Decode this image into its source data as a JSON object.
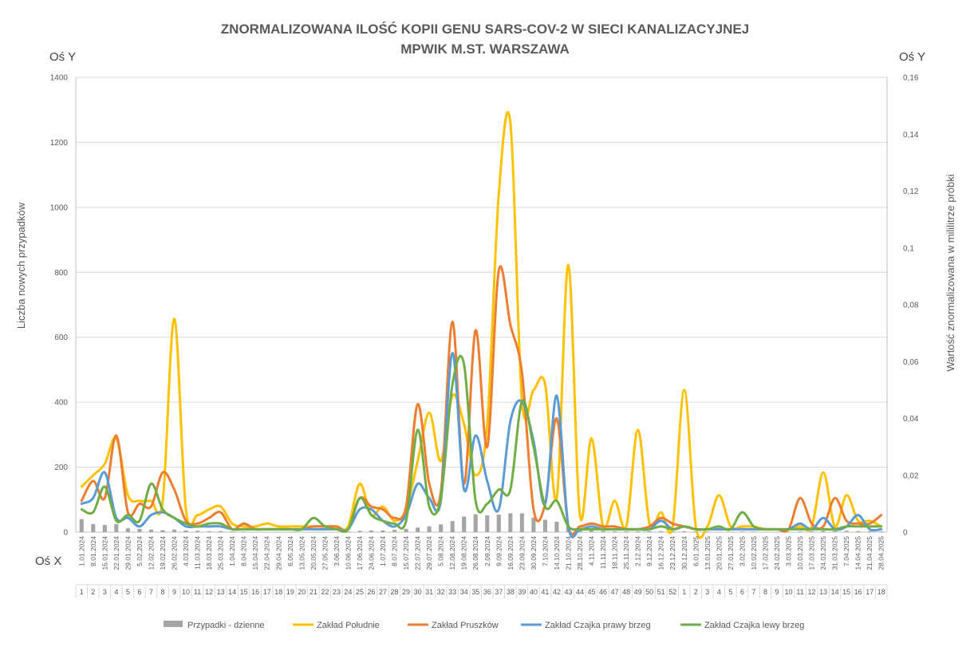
{
  "chart_data": {
    "type": "line",
    "title_line1": "ZNORMALIZOWANA ILOŚĆ KOPII GENU SARS-COV-2 W SIECI KANALIZACYJNEJ",
    "title_line2": "MPWIK M.ST. WARSZAWA",
    "left_axis_name": "Oś Y",
    "right_axis_name": "Oś Y",
    "x_axis_name": "Oś X",
    "ylabel_left": "Liczba nowych przypadków",
    "ylabel_right": "Wartość znormalizowana  w mililitrze próbki",
    "y_left_ticks": [
      "0",
      "200",
      "400",
      "600",
      "800",
      "1000",
      "1200",
      "1400"
    ],
    "y_right_ticks": [
      "0",
      "0,02",
      "0,04",
      "0,06",
      "0,08",
      "0,1",
      "0,12",
      "0,14",
      "0,16"
    ],
    "ylim_left": [
      0,
      1400
    ],
    "ylim_right": [
      0,
      0.16
    ],
    "grid": "horizontal",
    "legend_position": "bottom",
    "x_dates": [
      "1.01.2024",
      "8.01.2024",
      "15.01.2024",
      "22.01.2024",
      "29.01.2024",
      "5.02.2024",
      "12.02.2024",
      "19.02.2024",
      "26.02.2024",
      "4.03.2024",
      "11.03.2024",
      "18.03.2024",
      "25.03.2024",
      "1.04.2024",
      "8.04.2024",
      "15.04.2024",
      "22.04.2024",
      "29.04.2024",
      "6.05.2024",
      "13.05.2024",
      "20.05.2024",
      "27.05.2024",
      "3.06.2024",
      "10.06.2024",
      "17.06.2024",
      "24.06.2024",
      "1.07.2024",
      "8.07.2024",
      "15.07.2024",
      "22.07.2024",
      "29.07.2024",
      "5.08.2024",
      "12.08.2024",
      "19.08.2024",
      "26.08.2024",
      "2.09.2024",
      "9.09.2024",
      "16.09.2024",
      "23.09.2024",
      "30.09.2024",
      "7.10.2024",
      "14.10.2024",
      "21.10.2024",
      "28.10.2024",
      "4.11.2024",
      "11.11.2024",
      "18.11.2024",
      "25.11.2024",
      "2.12.2024",
      "9.12.2024",
      "16.12.2024",
      "23.12.2024",
      "30.12.2024",
      "6.01.2025",
      "13.01.2025",
      "20.01.2025",
      "27.01.2025",
      "3.02.2025",
      "10.02.2025",
      "17.02.2025",
      "24.02.2025",
      "3.03.2025",
      "10.03.2025",
      "17.03.2025",
      "24.03.2025",
      "31.03.2025",
      "7.04.2025",
      "14.04.2025",
      "21.04.2025",
      "28.04.2025"
    ],
    "x_weeks": [
      "1",
      "2",
      "3",
      "4",
      "5",
      "6",
      "7",
      "8",
      "9",
      "10",
      "11",
      "12",
      "13",
      "14",
      "15",
      "16",
      "17",
      "18",
      "19",
      "20",
      "21",
      "22",
      "23",
      "24",
      "25",
      "26",
      "27",
      "28",
      "29",
      "30",
      "31",
      "32",
      "33",
      "34",
      "35",
      "36",
      "37",
      "38",
      "39",
      "40",
      "41",
      "42",
      "43",
      "44",
      "45",
      "46",
      "47",
      "48",
      "49",
      "50",
      "51",
      "52",
      "1",
      "2",
      "3",
      "4",
      "5",
      "6",
      "7",
      "8",
      "9",
      "10",
      "11",
      "12",
      "13",
      "14",
      "15",
      "16",
      "17",
      "18"
    ],
    "series": [
      {
        "name": "Przypadki - dzienne",
        "type": "bar",
        "axis": "left",
        "color": "#a5a5a5",
        "values": [
          40,
          25,
          22,
          25,
          12,
          10,
          8,
          6,
          8,
          5,
          4,
          3,
          3,
          2,
          2,
          1,
          1,
          1,
          1,
          1,
          1,
          1,
          1,
          2,
          4,
          5,
          5,
          7,
          10,
          14,
          18,
          24,
          34,
          48,
          55,
          52,
          54,
          58,
          58,
          45,
          38,
          32,
          18,
          10,
          6,
          4,
          3,
          3,
          3,
          3,
          3,
          3,
          3,
          2,
          2,
          1,
          1,
          2,
          2,
          1,
          1,
          1,
          2,
          3,
          4,
          4,
          4,
          3,
          3,
          2
        ]
      },
      {
        "name": "Zakład Południe",
        "type": "line",
        "axis": "right",
        "color": "#ffc000",
        "values": [
          0.016,
          0.02,
          0.024,
          0.033,
          0.013,
          0.011,
          0.011,
          0.011,
          0.075,
          0.008,
          0.006,
          0.008,
          0.009,
          0.003,
          0.002,
          0.002,
          0.003,
          0.002,
          0.002,
          0.002,
          0.002,
          0.002,
          0.002,
          0.002,
          0.017,
          0.006,
          0.009,
          0.004,
          0.008,
          0.025,
          0.042,
          0.025,
          0.048,
          0.038,
          0.02,
          0.038,
          0.119,
          0.144,
          0.046,
          0.05,
          0.052,
          0.012,
          0.094,
          0.006,
          0.033,
          0.002,
          0.011,
          0.002,
          0.036,
          0.003,
          0.007,
          0.002,
          0.05,
          0.002,
          0.002,
          0.013,
          0.002,
          0.002,
          0.002,
          0.001,
          0.001,
          0.001,
          0.002,
          0.002,
          0.021,
          0.002,
          0.013,
          0.004,
          0.004,
          0.002
        ]
      },
      {
        "name": "Zakład Pruszków",
        "type": "line",
        "axis": "right",
        "color": "#ed7d31",
        "values": [
          0.011,
          0.018,
          0.012,
          0.034,
          0.007,
          0.01,
          0.009,
          0.021,
          0.015,
          0.004,
          0.003,
          0.005,
          0.007,
          0.001,
          0.003,
          0.001,
          0.001,
          0.001,
          0.001,
          0.001,
          0.002,
          0.002,
          0.002,
          0.001,
          0.012,
          0.009,
          0.008,
          0.005,
          0.009,
          0.045,
          0.017,
          0.014,
          0.074,
          0.017,
          0.071,
          0.03,
          0.092,
          0.073,
          0.056,
          0.008,
          0.01,
          0.04,
          0.002,
          0.002,
          0.003,
          0.002,
          0.002,
          0.001,
          0.001,
          0.002,
          0.005,
          0.003,
          0.002,
          0.001,
          0.001,
          0.001,
          0.001,
          0.001,
          0.001,
          0.001,
          0.001,
          0.001,
          0.012,
          0.003,
          0.002,
          0.012,
          0.004,
          0.003,
          0.003,
          0.006
        ]
      },
      {
        "name": "Zakład Czajka prawy brzeg",
        "type": "line",
        "axis": "right",
        "color": "#5b9bd5",
        "values": [
          0.01,
          0.012,
          0.021,
          0.005,
          0.005,
          0.002,
          0.006,
          0.007,
          0.005,
          0.002,
          0.002,
          0.002,
          0.002,
          0.001,
          0.001,
          0.001,
          0.001,
          0.001,
          0.001,
          0.001,
          0.001,
          0.001,
          0.001,
          0.001,
          0.008,
          0.008,
          0.004,
          0.002,
          0.006,
          0.017,
          0.012,
          0.011,
          0.063,
          0.015,
          0.034,
          0.018,
          0.008,
          0.039,
          0.046,
          0.032,
          0.01,
          0.048,
          0.002,
          0.001,
          0.002,
          0.001,
          0.001,
          0.001,
          0.001,
          0.001,
          0.004,
          0.001,
          0.002,
          0.001,
          0.001,
          0.001,
          0.001,
          0.001,
          0.001,
          0.001,
          0.001,
          0.001,
          0.003,
          0.001,
          0.005,
          0.001,
          0.002,
          0.006,
          0.001,
          0.001
        ]
      },
      {
        "name": "Zakład Czajka lewy brzeg",
        "type": "line",
        "axis": "right",
        "color": "#70ad47",
        "values": [
          0.008,
          0.007,
          0.016,
          0.004,
          0.006,
          0.004,
          0.017,
          0.008,
          0.005,
          0.003,
          0.002,
          0.003,
          0.003,
          0.001,
          0.001,
          0.001,
          0.001,
          0.001,
          0.001,
          0.001,
          0.005,
          0.002,
          0.001,
          0.001,
          0.012,
          0.006,
          0.004,
          0.003,
          0.004,
          0.036,
          0.009,
          0.012,
          0.052,
          0.059,
          0.011,
          0.01,
          0.015,
          0.015,
          0.046,
          0.03,
          0.009,
          0.011,
          0.002,
          0.001,
          0.001,
          0.001,
          0.001,
          0.001,
          0.001,
          0.001,
          0.002,
          0.001,
          0.002,
          0.001,
          0.001,
          0.002,
          0.001,
          0.007,
          0.002,
          0.001,
          0.001,
          0.001,
          0.001,
          0.001,
          0.001,
          0.001,
          0.002,
          0.002,
          0.002,
          0.002
        ]
      }
    ]
  }
}
